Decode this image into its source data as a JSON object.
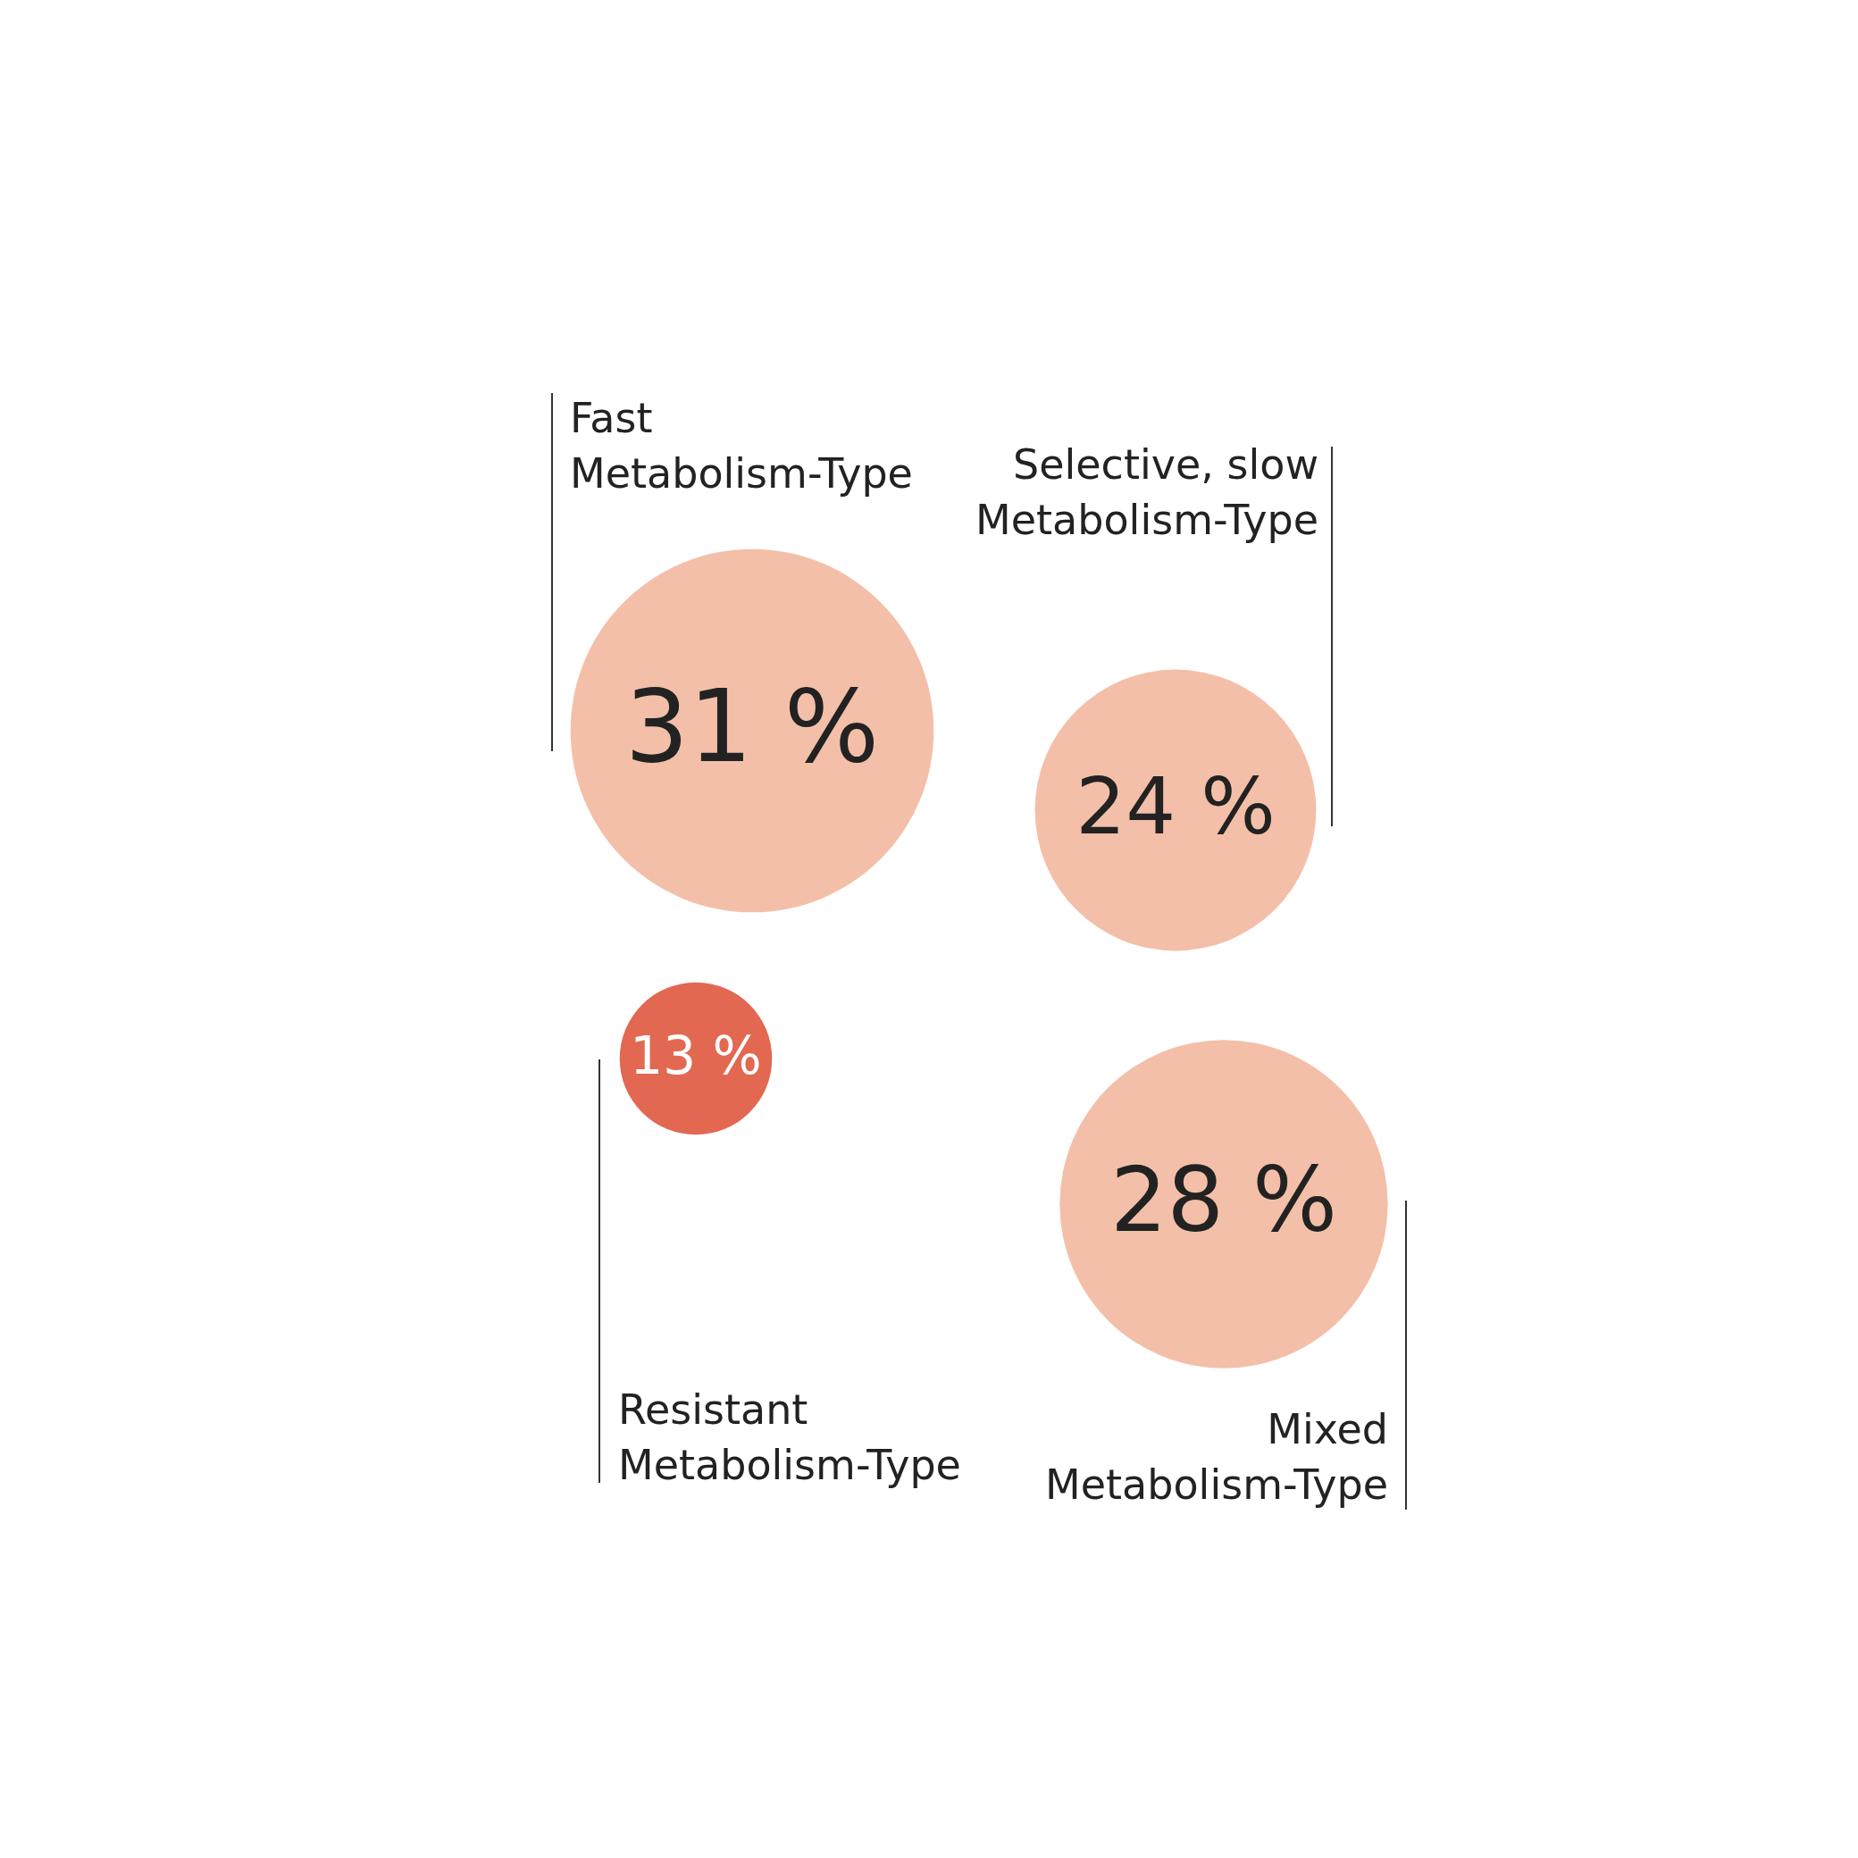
{
  "chart_data": {
    "type": "other",
    "categories": [
      "Fast Metabolism-Type",
      "Selective, slow Metabolism-Type",
      "Resistant Metabolism-Type",
      "Mixed Metabolism-Type"
    ],
    "values": [
      31,
      24,
      13,
      28
    ],
    "value_labels": [
      "31 %",
      "24 %",
      "13 %",
      "28 %"
    ],
    "colors": [
      "#f4bfa8",
      "#f4bfa8",
      "#e26852",
      "#f4bfa8"
    ]
  }
}
